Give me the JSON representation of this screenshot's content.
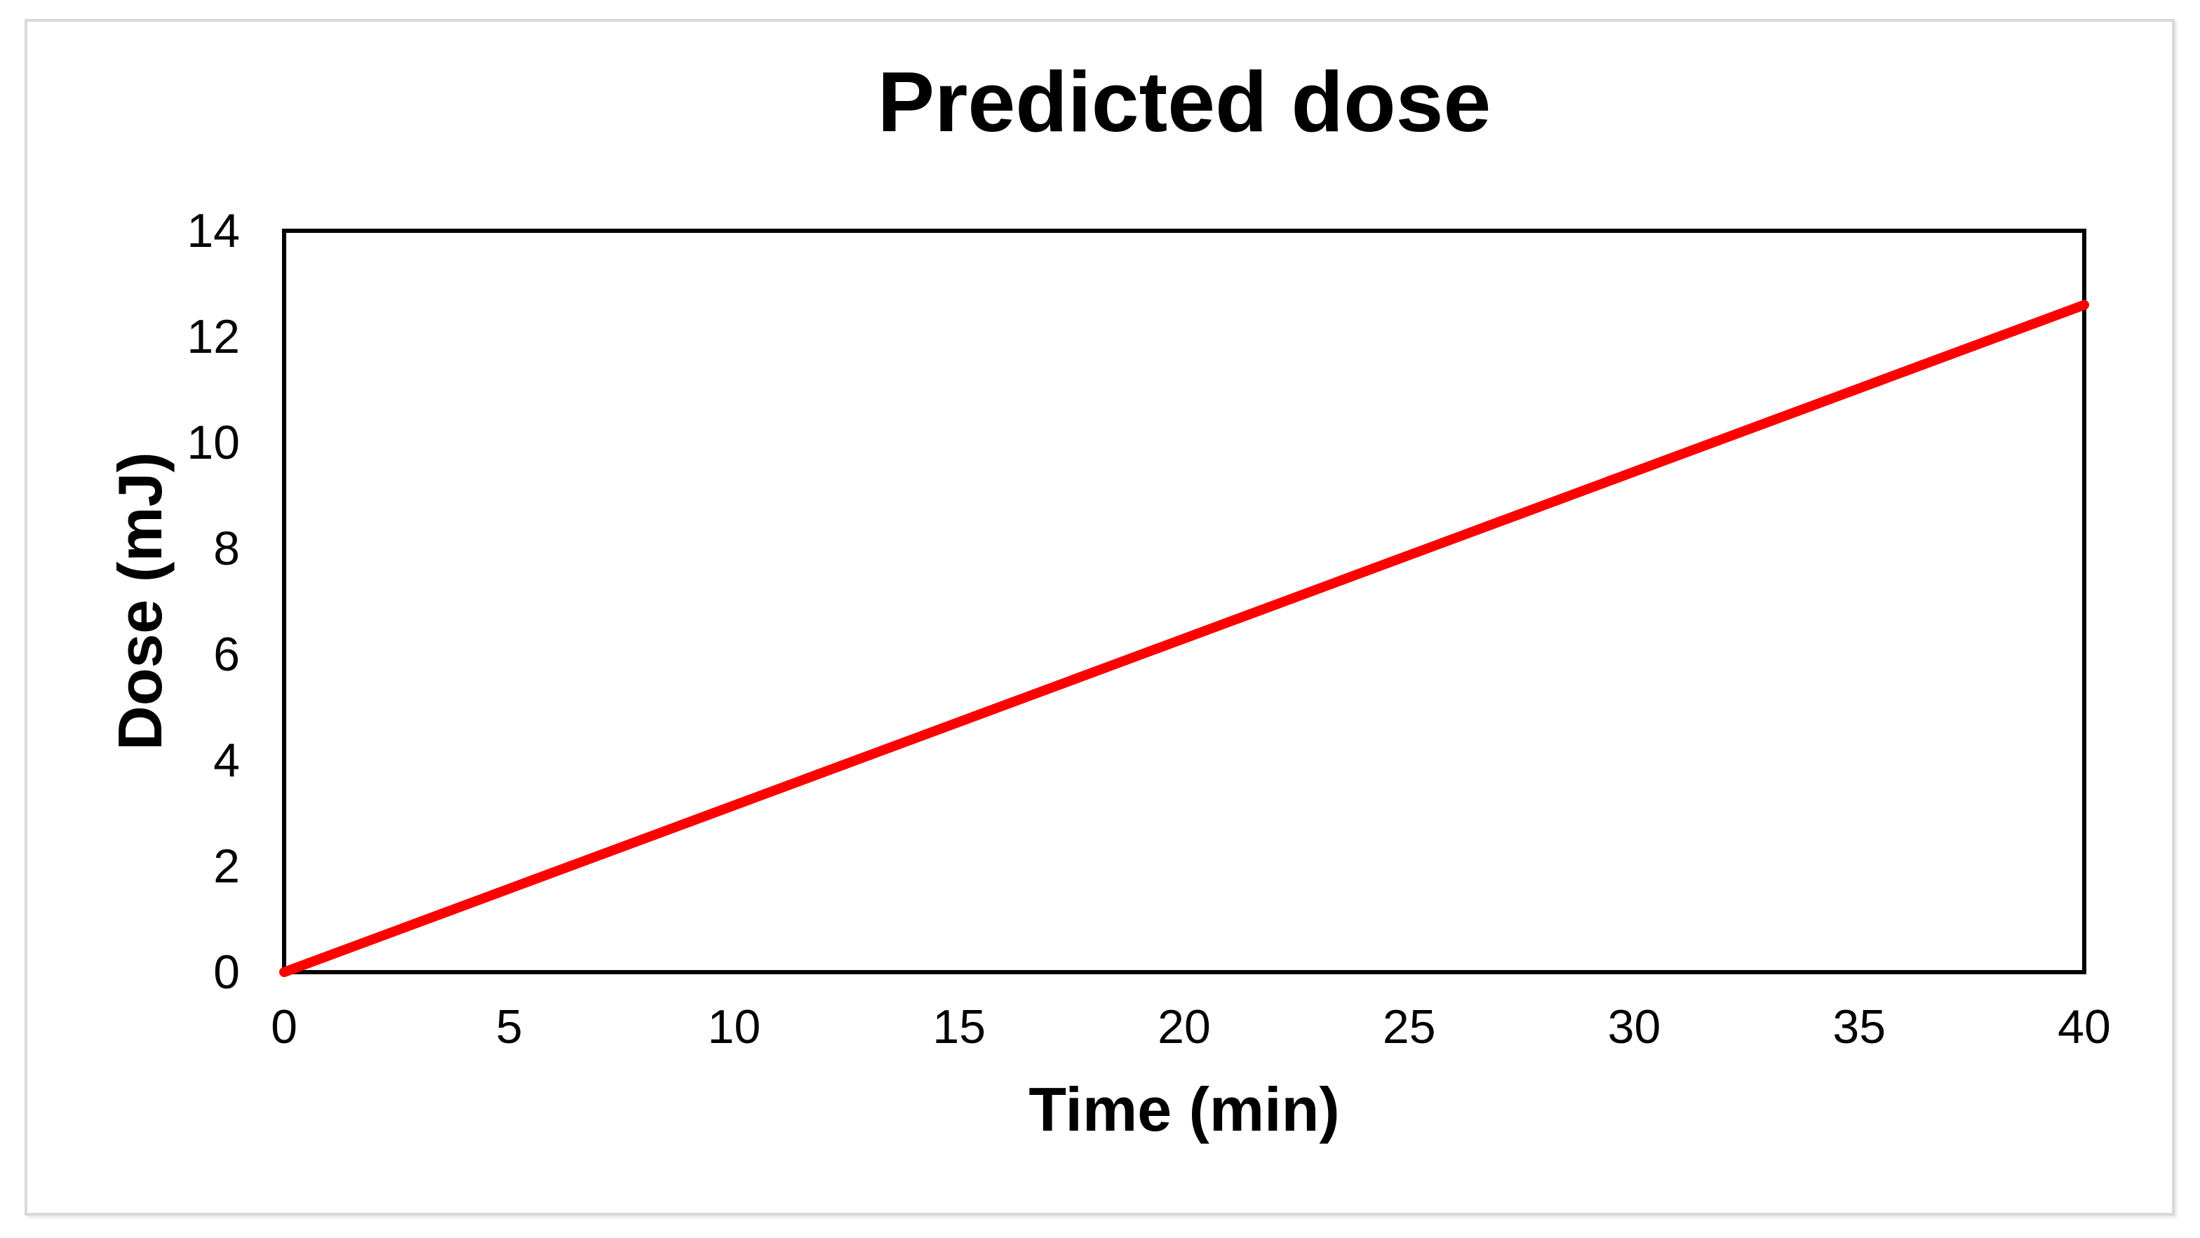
{
  "chart_data": {
    "type": "line",
    "title": "Predicted dose",
    "xlabel": "Time (min)",
    "ylabel": "Dose (mJ)",
    "xlim": [
      0,
      40
    ],
    "ylim": [
      0,
      14
    ],
    "xticks": [
      0,
      5,
      10,
      15,
      20,
      25,
      30,
      35,
      40
    ],
    "yticks": [
      0,
      2,
      4,
      6,
      8,
      10,
      12,
      14
    ],
    "grid": false,
    "legend": false,
    "series": [
      {
        "name": "Predicted dose",
        "color": "#FF0000",
        "points": [
          [
            0,
            0
          ],
          [
            40,
            12.6
          ]
        ]
      }
    ]
  },
  "colors": {
    "background": "#FFFFFF",
    "text": "#000000",
    "axis": "#000000",
    "line": "#FF0000",
    "frame_border": "#D9D9D9"
  }
}
